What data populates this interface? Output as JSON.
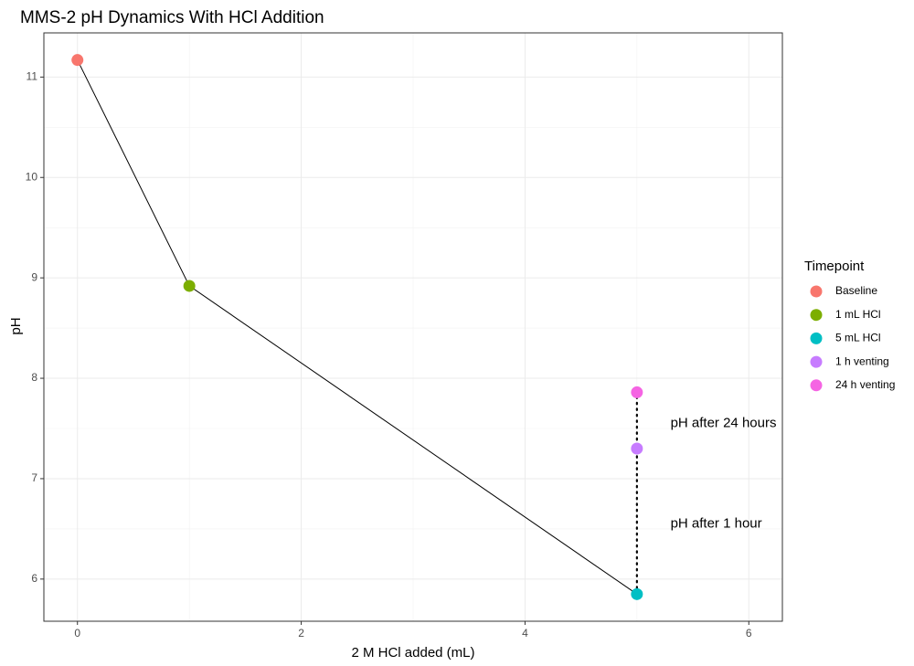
{
  "chart_data": {
    "type": "scatter",
    "title": "MMS-2 pH Dynamics With HCl Addition",
    "xlabel": "2 M HCl added (mL)",
    "ylabel": "pH",
    "xlim": [
      -0.3,
      6.3
    ],
    "ylim": [
      5.58,
      11.44
    ],
    "x_ticks": [
      0,
      2,
      4,
      6
    ],
    "y_ticks": [
      6,
      7,
      8,
      9,
      10,
      11
    ],
    "grid": true,
    "legend": {
      "title": "Timepoint",
      "position": "right",
      "entries": [
        "Baseline",
        "1 mL HCl",
        "5 mL HCl",
        "1 h venting",
        "24 h venting"
      ]
    },
    "series": [
      {
        "name": "Baseline",
        "color": "#F8766D",
        "x": [
          0
        ],
        "y": [
          11.17
        ]
      },
      {
        "name": "1 mL HCl",
        "color": "#7CAE00",
        "x": [
          1
        ],
        "y": [
          8.92
        ]
      },
      {
        "name": "5 mL HCl",
        "color": "#00BFC4",
        "x": [
          5
        ],
        "y": [
          5.85
        ]
      },
      {
        "name": "1 h venting",
        "color": "#C77CFF",
        "x": [
          5
        ],
        "y": [
          7.3
        ]
      },
      {
        "name": "24 h venting",
        "color": "#F564E3",
        "x": [
          5
        ],
        "y": [
          7.86
        ]
      }
    ],
    "solid_line": {
      "x": [
        0,
        1,
        5
      ],
      "y": [
        11.17,
        8.92,
        5.85
      ]
    },
    "dotted_line": {
      "x": [
        5,
        5,
        5
      ],
      "y": [
        5.85,
        7.3,
        7.86
      ]
    },
    "annotations": [
      {
        "text": "pH after 24 hours",
        "x": 5.3,
        "y": 7.55
      },
      {
        "text": "pH after 1 hour",
        "x": 5.3,
        "y": 6.55
      }
    ]
  }
}
